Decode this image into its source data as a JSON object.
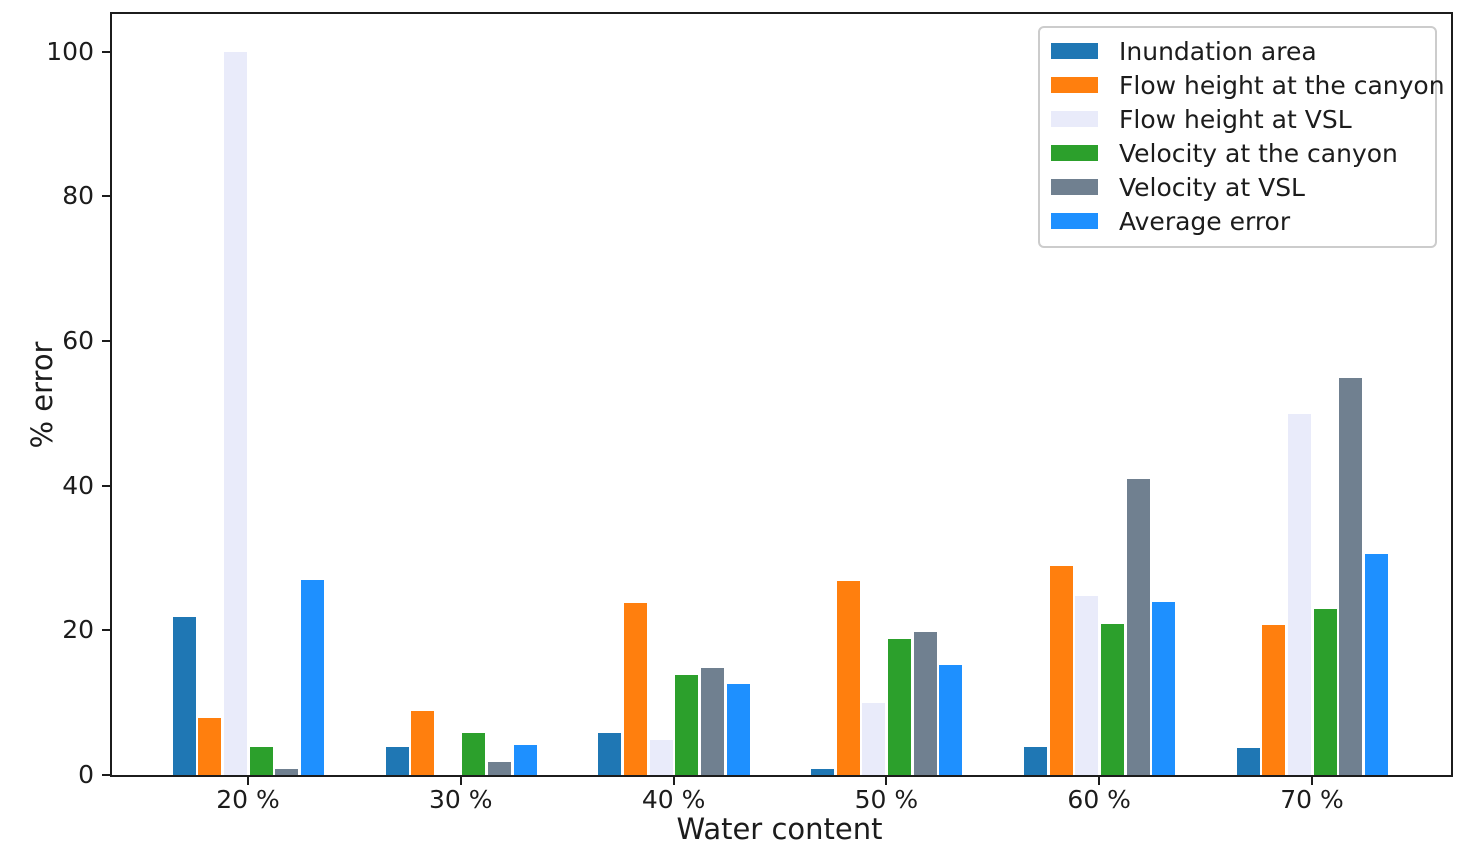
{
  "chart_data": {
    "type": "bar",
    "title": "",
    "xlabel": "Water content",
    "ylabel": "% error",
    "categories": [
      "20 %",
      "30 %",
      "40 %",
      "50 %",
      "60 %",
      "70 %"
    ],
    "yticks": [
      "0",
      "20",
      "40",
      "60",
      "80",
      "100"
    ],
    "ytick_values": [
      0,
      20,
      40,
      60,
      80,
      100
    ],
    "ylim": [
      0,
      105.2
    ],
    "grid": false,
    "legend_position": "upper right",
    "series": [
      {
        "name": "Inundation area",
        "color": "#1f77b4",
        "values": [
          21.8,
          3.9,
          5.8,
          0.9,
          3.9,
          3.8
        ]
      },
      {
        "name": "Flow height at the canyon",
        "color": "#ff7f0e",
        "values": [
          7.9,
          8.9,
          23.8,
          26.8,
          28.9,
          20.8
        ]
      },
      {
        "name": "Flow height at VSL",
        "color": "#e9ebfa",
        "values": [
          100.0,
          0.0,
          4.8,
          9.9,
          24.8,
          49.9
        ]
      },
      {
        "name": "Velocity at the canyon",
        "color": "#2ca02c",
        "values": [
          3.9,
          5.8,
          13.8,
          18.8,
          20.9,
          22.9
        ]
      },
      {
        "name": "Velocity at VSL",
        "color": "#708090",
        "values": [
          0.8,
          1.8,
          14.8,
          19.8,
          40.9,
          54.9
        ]
      },
      {
        "name": "Average error",
        "color": "#1e90ff",
        "values": [
          26.9,
          4.1,
          12.6,
          15.2,
          23.9,
          30.5
        ]
      }
    ]
  }
}
